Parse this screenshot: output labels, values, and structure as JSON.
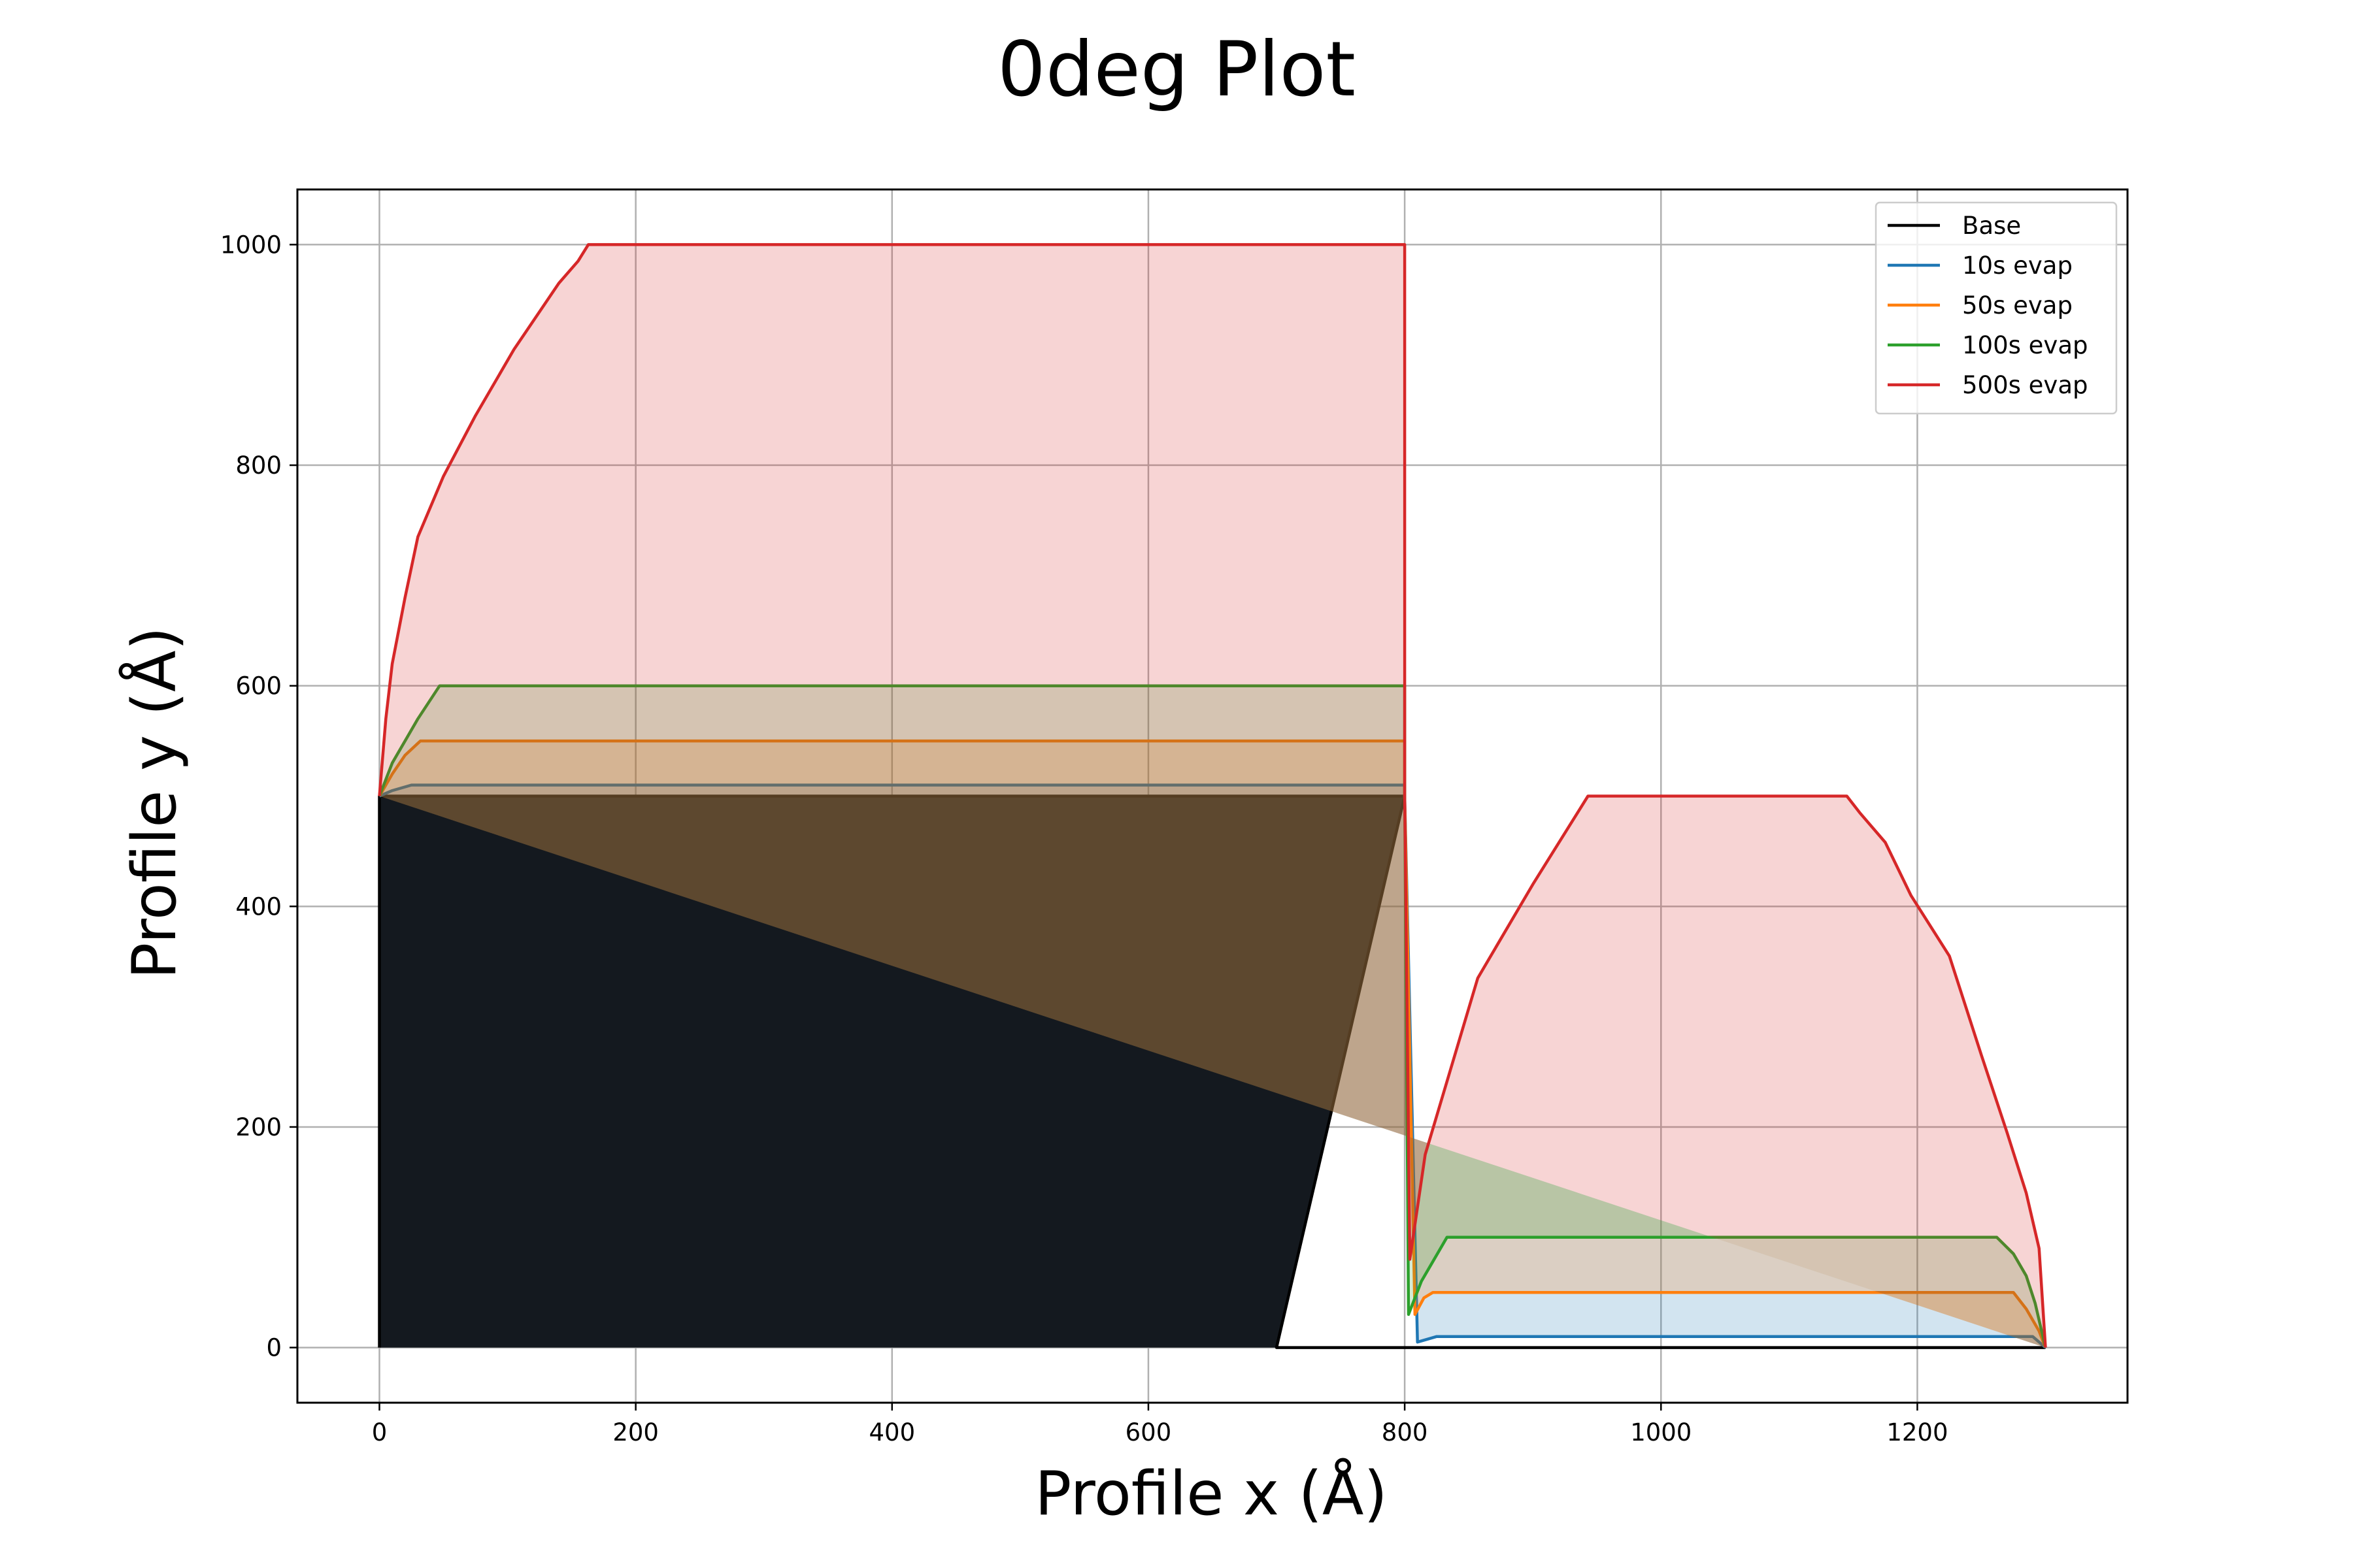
{
  "chart_data": {
    "type": "area",
    "title": "0deg Plot",
    "xlabel": "Profile x (Å)",
    "ylabel": "Profile y (Å)",
    "xlim": [
      -64,
      1364
    ],
    "ylim": [
      -50,
      1050
    ],
    "xticks": [
      0,
      200,
      400,
      600,
      800,
      1000,
      1200
    ],
    "yticks": [
      0,
      200,
      400,
      600,
      800,
      1000
    ],
    "grid": true,
    "legend_position": "top-right",
    "series": [
      {
        "name": "Base",
        "color": "#000000",
        "fill": "#14191f",
        "fill_opacity": 1,
        "points": [
          [
            0,
            0
          ],
          [
            0,
            500
          ],
          [
            800,
            500
          ],
          [
            700,
            0
          ],
          [
            800,
            0
          ],
          [
            1300,
            0
          ]
        ]
      },
      {
        "name": "10s evap",
        "color": "#1f77b4",
        "fill": "#1f77b4",
        "fill_opacity": 0.2,
        "points": [
          [
            0,
            500
          ],
          [
            10,
            505
          ],
          [
            25,
            510
          ],
          [
            800,
            510
          ],
          [
            800,
            500
          ],
          [
            810,
            5
          ],
          [
            825,
            10
          ],
          [
            1290,
            10
          ],
          [
            1300,
            0
          ]
        ]
      },
      {
        "name": "50s evap",
        "color": "#ff7f0e",
        "fill": "#ff7f0e",
        "fill_opacity": 0.2,
        "points": [
          [
            0,
            500
          ],
          [
            10,
            520
          ],
          [
            20,
            537
          ],
          [
            32,
            550
          ],
          [
            800,
            550
          ],
          [
            800,
            500
          ],
          [
            808,
            30
          ],
          [
            815,
            45
          ],
          [
            822,
            50
          ],
          [
            1275,
            50
          ],
          [
            1285,
            35
          ],
          [
            1295,
            15
          ],
          [
            1300,
            0
          ]
        ]
      },
      {
        "name": "100s evap",
        "color": "#2ca02c",
        "fill": "#2ca02c",
        "fill_opacity": 0.2,
        "points": [
          [
            0,
            500
          ],
          [
            10,
            530
          ],
          [
            20,
            550
          ],
          [
            30,
            570
          ],
          [
            47,
            600
          ],
          [
            800,
            600
          ],
          [
            800,
            500
          ],
          [
            803,
            30
          ],
          [
            813,
            60
          ],
          [
            833,
            100
          ],
          [
            1262,
            100
          ],
          [
            1275,
            85
          ],
          [
            1285,
            65
          ],
          [
            1292,
            40
          ],
          [
            1300,
            0
          ]
        ]
      },
      {
        "name": "500s evap",
        "color": "#d62728",
        "fill": "#d62728",
        "fill_opacity": 0.2,
        "points": [
          [
            0,
            500
          ],
          [
            5,
            570
          ],
          [
            10,
            620
          ],
          [
            20,
            680
          ],
          [
            30,
            735
          ],
          [
            50,
            790
          ],
          [
            75,
            845
          ],
          [
            105,
            905
          ],
          [
            140,
            965
          ],
          [
            155,
            985
          ],
          [
            163,
            1000
          ],
          [
            800,
            1000
          ],
          [
            800,
            500
          ],
          [
            804,
            80
          ],
          [
            816,
            175
          ],
          [
            857,
            335
          ],
          [
            900,
            420
          ],
          [
            943,
            500
          ],
          [
            1145,
            500
          ],
          [
            1155,
            485
          ],
          [
            1175,
            458
          ],
          [
            1195,
            410
          ],
          [
            1225,
            355
          ],
          [
            1250,
            265
          ],
          [
            1270,
            195
          ],
          [
            1285,
            140
          ],
          [
            1295,
            90
          ],
          [
            1300,
            0
          ]
        ]
      }
    ]
  }
}
